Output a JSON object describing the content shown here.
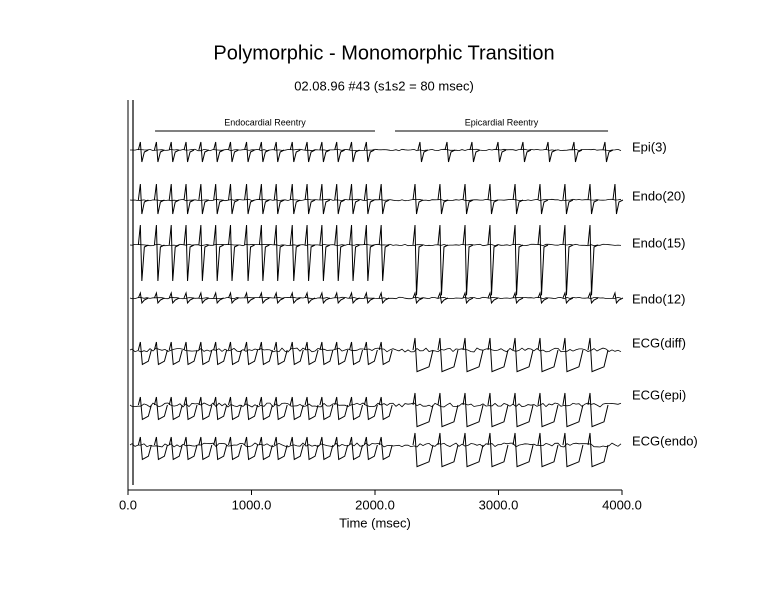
{
  "chart_data": {
    "type": "traces",
    "title": "Polymorphic - Monomorphic Transition",
    "subtitle": "02.08.96 #43  (s1s2 = 80 msec)",
    "xlabel": "Time (msec)",
    "xlim": [
      0,
      4000
    ],
    "xticks": [
      {
        "value": 0,
        "label": "0.0"
      },
      {
        "value": 1000,
        "label": "1000.0"
      },
      {
        "value": 2000,
        "label": "2000.0"
      },
      {
        "value": 3000,
        "label": "3000.0"
      },
      {
        "value": 4000,
        "label": "4000.0"
      }
    ],
    "annotations": [
      {
        "text": "Endocardial Reentry",
        "range": [
          219,
          2000
        ]
      },
      {
        "text": "Epicardial Reentry",
        "range": [
          2162,
          3887
        ]
      }
    ],
    "color": "#000000",
    "series": [
      {
        "name": "Epi(3)",
        "beats": [
          100,
          230,
          350,
          470,
          590,
          710,
          830,
          960,
          1080,
          1200,
          1330,
          1450,
          1570,
          1690,
          1810,
          1930,
          2364,
          2583,
          2785,
          2996,
          3198,
          3401,
          3611,
          3862
        ]
      },
      {
        "name": "Endo(20)",
        "beats": [
          100,
          230,
          350,
          470,
          590,
          710,
          830,
          960,
          1080,
          1200,
          1330,
          1450,
          1570,
          1690,
          1810,
          1930,
          2050,
          2324,
          2526,
          2729,
          2931,
          3134,
          3336,
          3538,
          3741,
          3943
        ]
      },
      {
        "name": "Endo(15)",
        "beats": [
          100,
          230,
          350,
          470,
          590,
          710,
          830,
          960,
          1080,
          1200,
          1330,
          1450,
          1570,
          1690,
          1810,
          1930,
          2050,
          2324,
          2526,
          2729,
          2931,
          3134,
          3336,
          3538,
          3741
        ]
      },
      {
        "name": "Endo(12)",
        "beats": [
          100,
          230,
          350,
          470,
          590,
          710,
          830,
          960,
          1080,
          1200,
          1330,
          1450,
          1570,
          1690,
          1810,
          1930,
          2050,
          2324,
          2526,
          2729,
          2931,
          3134,
          3336,
          3538,
          3741,
          3943
        ]
      },
      {
        "name": "ECG(diff)",
        "beats": [
          100,
          230,
          350,
          470,
          590,
          710,
          830,
          960,
          1080,
          1200,
          1330,
          1450,
          1570,
          1690,
          1810,
          1930,
          2050,
          2324,
          2526,
          2729,
          2931,
          3134,
          3336,
          3538,
          3741
        ]
      },
      {
        "name": "ECG(epi)",
        "beats": [
          100,
          230,
          350,
          470,
          590,
          710,
          830,
          960,
          1080,
          1200,
          1330,
          1450,
          1570,
          1690,
          1810,
          1930,
          2050,
          2324,
          2526,
          2729,
          2931,
          3134,
          3336,
          3538,
          3741
        ]
      },
      {
        "name": "ECG(endo)",
        "beats": [
          100,
          230,
          350,
          470,
          590,
          710,
          830,
          960,
          1080,
          1200,
          1330,
          1450,
          1570,
          1690,
          1810,
          1930,
          2050,
          2324,
          2526,
          2729,
          2931,
          3134,
          3336,
          3538,
          3741
        ]
      }
    ]
  }
}
